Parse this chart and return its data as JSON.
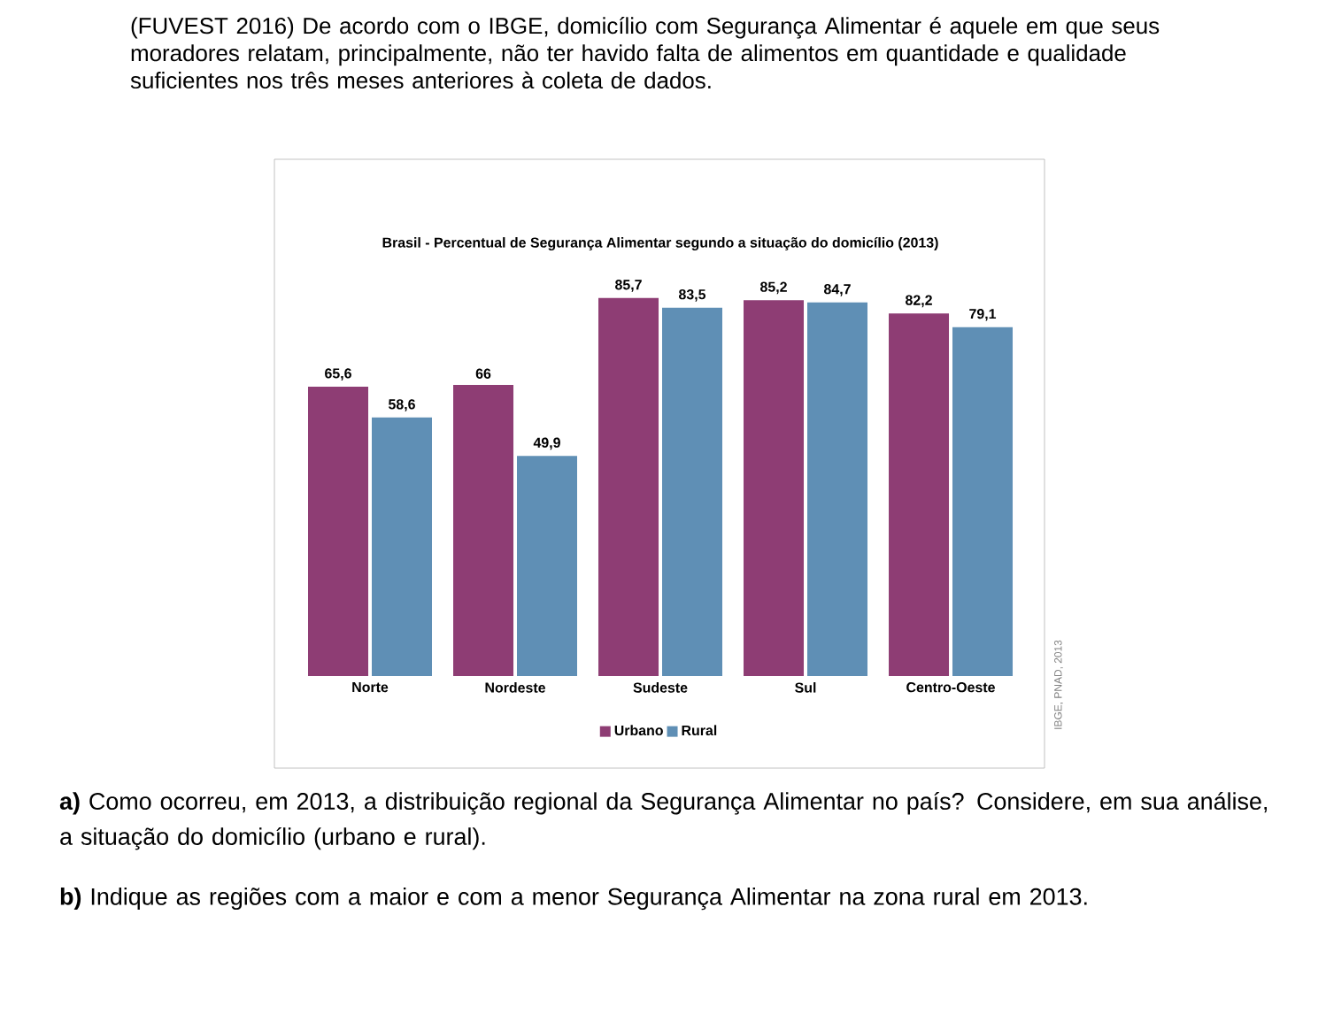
{
  "chart_data": {
    "type": "bar",
    "title": "Brasil - Percentual de Segurança Alimentar segundo a situação do domicílio (2013)",
    "categories": [
      "Norte",
      "Nordeste",
      "Sudeste",
      "Sul",
      "Centro-Oeste"
    ],
    "series": [
      {
        "name": "Urbano",
        "color": "#8e3d74",
        "values": [
          65.6,
          66,
          85.7,
          85.2,
          82.2
        ],
        "value_labels": [
          "65,6",
          "66",
          "85,7",
          "85,2",
          "82,2"
        ]
      },
      {
        "name": "Rural",
        "color": "#5f8fb5",
        "values": [
          58.6,
          49.9,
          83.5,
          84.7,
          79.1
        ],
        "value_labels": [
          "58,6",
          "49,9",
          "83,5",
          "84,7",
          "79,1"
        ]
      }
    ],
    "legend": "bottom",
    "tick_labels": "x",
    "annotations": [
      "(FUVEST 2016) De acordo com o IBGE, domicílio com Segurança Alimentar é aquele em que seus moradores relatam, principalmente, não ter havido falta de alimentos em quantidade e qualidade suficientes nos três meses anteriores à coleta de dados.",
      "IBGE, PNAD, 2013",
      "**a)** Como ocorreu, em 2013, a distribuição regional da Segurança Alimentar no país? Considere, em sua análise, a situação do domicílio (urbano e rural).",
      "**b)** Indique as regiões com a maior e com a menor Segurança Alimentar na zona rural em 2013."
    ]
  }
}
